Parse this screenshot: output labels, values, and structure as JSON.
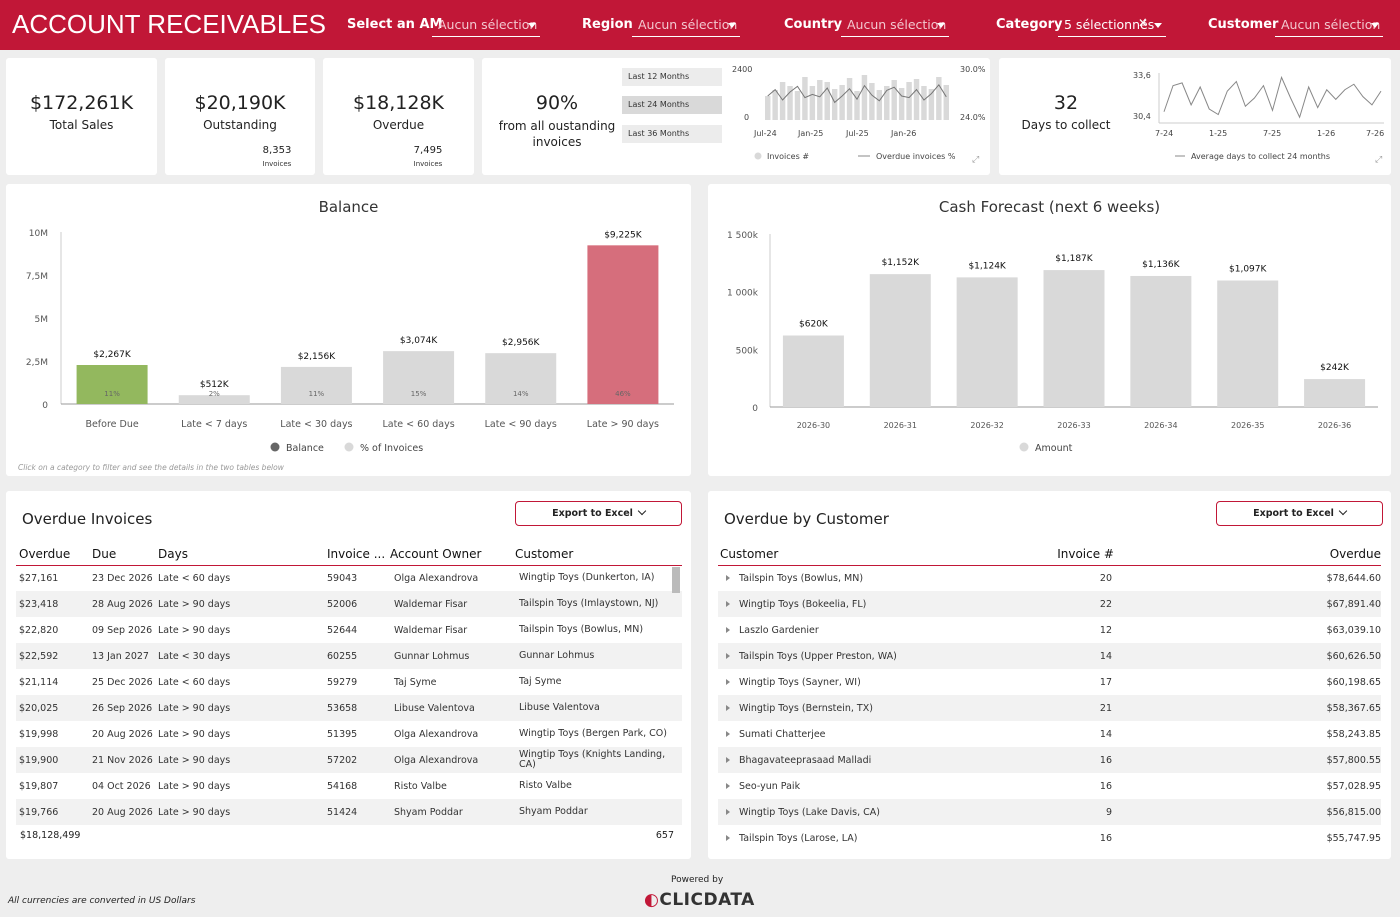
{
  "header": {
    "title": "ACCOUNT RECEIVABLES",
    "filters": [
      {
        "label": "Select an AM",
        "value": "Aucun sélection"
      },
      {
        "label": "Region",
        "value": "Aucun sélection"
      },
      {
        "label": "Country",
        "value": "Aucun sélection"
      },
      {
        "label": "Category",
        "value": "5 sélectionnés"
      },
      {
        "label": "Customer",
        "value": "Aucun sélection"
      }
    ]
  },
  "kpis": {
    "total_sales": {
      "value": "$172,261K",
      "label": "Total Sales"
    },
    "outstanding": {
      "value": "$20,190K",
      "label": "Outstanding",
      "count": "8,353",
      "count_label": "Invoices"
    },
    "overdue": {
      "value": "$18,128K",
      "label": "Overdue",
      "count": "7,495",
      "count_label": "Invoices"
    },
    "pct": {
      "value": "90%",
      "label": "from all oustanding invoices"
    },
    "days": {
      "value": "32",
      "label": "Days to collect"
    }
  },
  "period_buttons": [
    "Last 12 Months",
    "Last 24 Months",
    "Last 36 Months"
  ],
  "invoices_chart": {
    "y_left": [
      "2400",
      "0"
    ],
    "y_right": [
      "30.0%",
      "24.0%"
    ],
    "x": [
      "Jul-24",
      "Jan-25",
      "Jul-25",
      "Jan-26"
    ],
    "legend": [
      "Invoices #",
      "Overdue invoices %"
    ],
    "bars": [
      1200,
      1500,
      1900,
      1700,
      1450,
      2150,
      1700,
      2000,
      1900,
      1550,
      1750,
      2100,
      1450,
      2250,
      1850,
      1500,
      1700,
      2000,
      1600,
      1900,
      2050,
      1700,
      1550,
      2150,
      1750
    ],
    "line": [
      27.0,
      27.8,
      26.5,
      27.5,
      28.2,
      26.8,
      27.2,
      26.9,
      28.0,
      26.2,
      27.0,
      27.9,
      26.6,
      28.3,
      27.1,
      26.4,
      27.7,
      28.1,
      27.0,
      26.8,
      27.8,
      26.5,
      27.3,
      28.4,
      26.9
    ]
  },
  "days_chart": {
    "y": [
      "33,6",
      "30,4"
    ],
    "x": [
      "7-24",
      "1-25",
      "7-25",
      "1-26",
      "7-26"
    ],
    "legend": "Average days to collect 24 months",
    "line": [
      31.0,
      32.9,
      33.1,
      31.5,
      32.8,
      31.2,
      30.8,
      32.5,
      33.2,
      31.4,
      32.0,
      32.9,
      31.1,
      33.5,
      32.0,
      30.6,
      32.8,
      31.3,
      32.6,
      31.9,
      32.6,
      33.0,
      32.1,
      31.5,
      32.5
    ]
  },
  "balance": {
    "title": "Balance",
    "yticks": [
      "10M",
      "7,5M",
      "5M",
      "2,5M",
      "0"
    ],
    "legend": [
      "Balance",
      "% of Invoices"
    ],
    "note": "Click on a category to filter and see the details in the two tables below",
    "categories": [
      "Before Due",
      "Late < 7 days",
      "Late < 30 days",
      "Late < 60 days",
      "Late < 90 days",
      "Late > 90 days"
    ],
    "values": [
      2267,
      512,
      2156,
      3074,
      2956,
      9225
    ],
    "labels": [
      "$2,267K",
      "$512K",
      "$2,156K",
      "$3,074K",
      "$2,956K",
      "$9,225K"
    ],
    "pct": [
      "11%",
      "2%",
      "11%",
      "15%",
      "14%",
      "46%"
    ],
    "colors": [
      "#93b85e",
      "#d9d9d9",
      "#d9d9d9",
      "#d9d9d9",
      "#d9d9d9",
      "#d66e7c"
    ]
  },
  "forecast": {
    "title": "Cash Forecast (next 6 weeks)",
    "yticks": [
      "1 500k",
      "1 000k",
      "500k",
      "0"
    ],
    "legend": "Amount",
    "categories": [
      "2026-30",
      "2026-31",
      "2026-32",
      "2026-33",
      "2026-34",
      "2026-35",
      "2026-36"
    ],
    "values": [
      620,
      1152,
      1124,
      1187,
      1136,
      1097,
      242
    ],
    "labels": [
      "$620K",
      "$1,152K",
      "$1,124K",
      "$1,187K",
      "$1,136K",
      "$1,097K",
      "$242K"
    ]
  },
  "overdue_invoices": {
    "title": "Overdue Invoices",
    "export": "Export to Excel",
    "columns": [
      "Overdue",
      "Due",
      "Days",
      "Invoice ...",
      "Account Owner",
      "Customer"
    ],
    "rows": [
      [
        "$27,161",
        "23 Dec 2026",
        "Late < 60 days",
        "59043",
        "Olga Alexandrova",
        "Wingtip Toys (Dunkerton, IA)"
      ],
      [
        "$23,418",
        "28 Aug 2026",
        "Late > 90 days",
        "52006",
        "Waldemar Fisar",
        "Tailspin Toys (Imlaystown, NJ)"
      ],
      [
        "$22,820",
        "09 Sep 2026",
        "Late > 90 days",
        "52644",
        "Waldemar Fisar",
        "Tailspin Toys (Bowlus, MN)"
      ],
      [
        "$22,592",
        "13 Jan 2027",
        "Late < 30 days",
        "60255",
        "Gunnar Lohmus",
        "Gunnar Lohmus"
      ],
      [
        "$21,114",
        "25 Dec 2026",
        "Late < 60 days",
        "59279",
        "Taj Syme",
        "Taj Syme"
      ],
      [
        "$20,025",
        "26 Sep 2026",
        "Late > 90 days",
        "53658",
        "Libuse Valentova",
        "Libuse Valentova"
      ],
      [
        "$19,998",
        "20 Aug 2026",
        "Late > 90 days",
        "51395",
        "Olga Alexandrova",
        "Wingtip Toys (Bergen Park, CO)"
      ],
      [
        "$19,900",
        "21 Nov 2026",
        "Late > 90 days",
        "57202",
        "Olga Alexandrova",
        "Wingtip Toys (Knights Landing, CA)"
      ],
      [
        "$19,807",
        "04 Oct 2026",
        "Late > 90 days",
        "54168",
        "Risto Valbe",
        "Risto Valbe"
      ],
      [
        "$19,766",
        "20 Aug 2026",
        "Late > 90 days",
        "51424",
        "Shyam Poddar",
        "Shyam Poddar"
      ]
    ],
    "total": "$18,128,499",
    "total_count": "657"
  },
  "overdue_customer": {
    "title": "Overdue by Customer",
    "export": "Export to Excel",
    "columns": [
      "Customer",
      "Invoice #",
      "Overdue"
    ],
    "rows": [
      [
        "Tailspin Toys (Bowlus, MN)",
        "20",
        "$78,644.60"
      ],
      [
        "Wingtip Toys (Bokeelia, FL)",
        "22",
        "$67,891.40"
      ],
      [
        "Laszlo Gardenier",
        "12",
        "$63,039.10"
      ],
      [
        "Tailspin Toys (Upper Preston, WA)",
        "14",
        "$60,626.50"
      ],
      [
        "Wingtip Toys (Sayner, WI)",
        "17",
        "$60,198.65"
      ],
      [
        "Wingtip Toys (Bernstein, TX)",
        "21",
        "$58,367.65"
      ],
      [
        "Sumati Chatterjee",
        "14",
        "$58,243.85"
      ],
      [
        "Bhagavateeprasaad Malladi",
        "16",
        "$57,800.55"
      ],
      [
        "Seo-yun Paik",
        "16",
        "$57,028.95"
      ],
      [
        "Wingtip Toys (Lake Davis, CA)",
        "9",
        "$56,815.00"
      ],
      [
        "Tailspin Toys (Larose, LA)",
        "16",
        "$55,747.95"
      ]
    ]
  },
  "footer": {
    "note": "All currencies are converted in US Dollars",
    "powered": "Powered by",
    "brand": "CLICDATA"
  }
}
